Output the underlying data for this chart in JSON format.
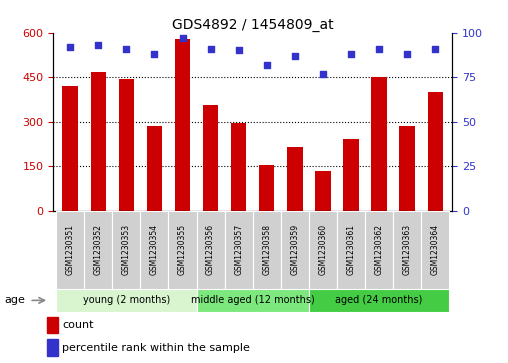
{
  "title": "GDS4892 / 1454809_at",
  "samples": [
    "GSM1230351",
    "GSM1230352",
    "GSM1230353",
    "GSM1230354",
    "GSM1230355",
    "GSM1230356",
    "GSM1230357",
    "GSM1230358",
    "GSM1230359",
    "GSM1230360",
    "GSM1230361",
    "GSM1230362",
    "GSM1230363",
    "GSM1230364"
  ],
  "counts": [
    420,
    468,
    445,
    285,
    580,
    355,
    295,
    155,
    215,
    135,
    240,
    450,
    285,
    400
  ],
  "percentile_ranks": [
    92,
    93,
    91,
    88,
    97,
    91,
    90,
    82,
    87,
    77,
    88,
    91,
    88,
    91
  ],
  "bar_color": "#cc0000",
  "dot_color": "#3333cc",
  "ylim_left": [
    0,
    600
  ],
  "ylim_right": [
    0,
    100
  ],
  "yticks_left": [
    0,
    150,
    300,
    450,
    600
  ],
  "yticks_right": [
    0,
    25,
    50,
    75,
    100
  ],
  "groups": [
    {
      "label": "young (2 months)",
      "start": 0,
      "end": 5,
      "color": "#d8f5d0"
    },
    {
      "label": "middle aged (12 months)",
      "start": 5,
      "end": 9,
      "color": "#7de87d"
    },
    {
      "label": "aged (24 months)",
      "start": 9,
      "end": 14,
      "color": "#44cc44"
    }
  ],
  "age_label": "age",
  "legend_count_label": "count",
  "legend_pct_label": "percentile rank within the sample",
  "bg_color": "#ffffff",
  "tick_label_color_left": "#cc0000",
  "tick_label_color_right": "#3333cc",
  "xlabel_bg": "#d0d0d0"
}
